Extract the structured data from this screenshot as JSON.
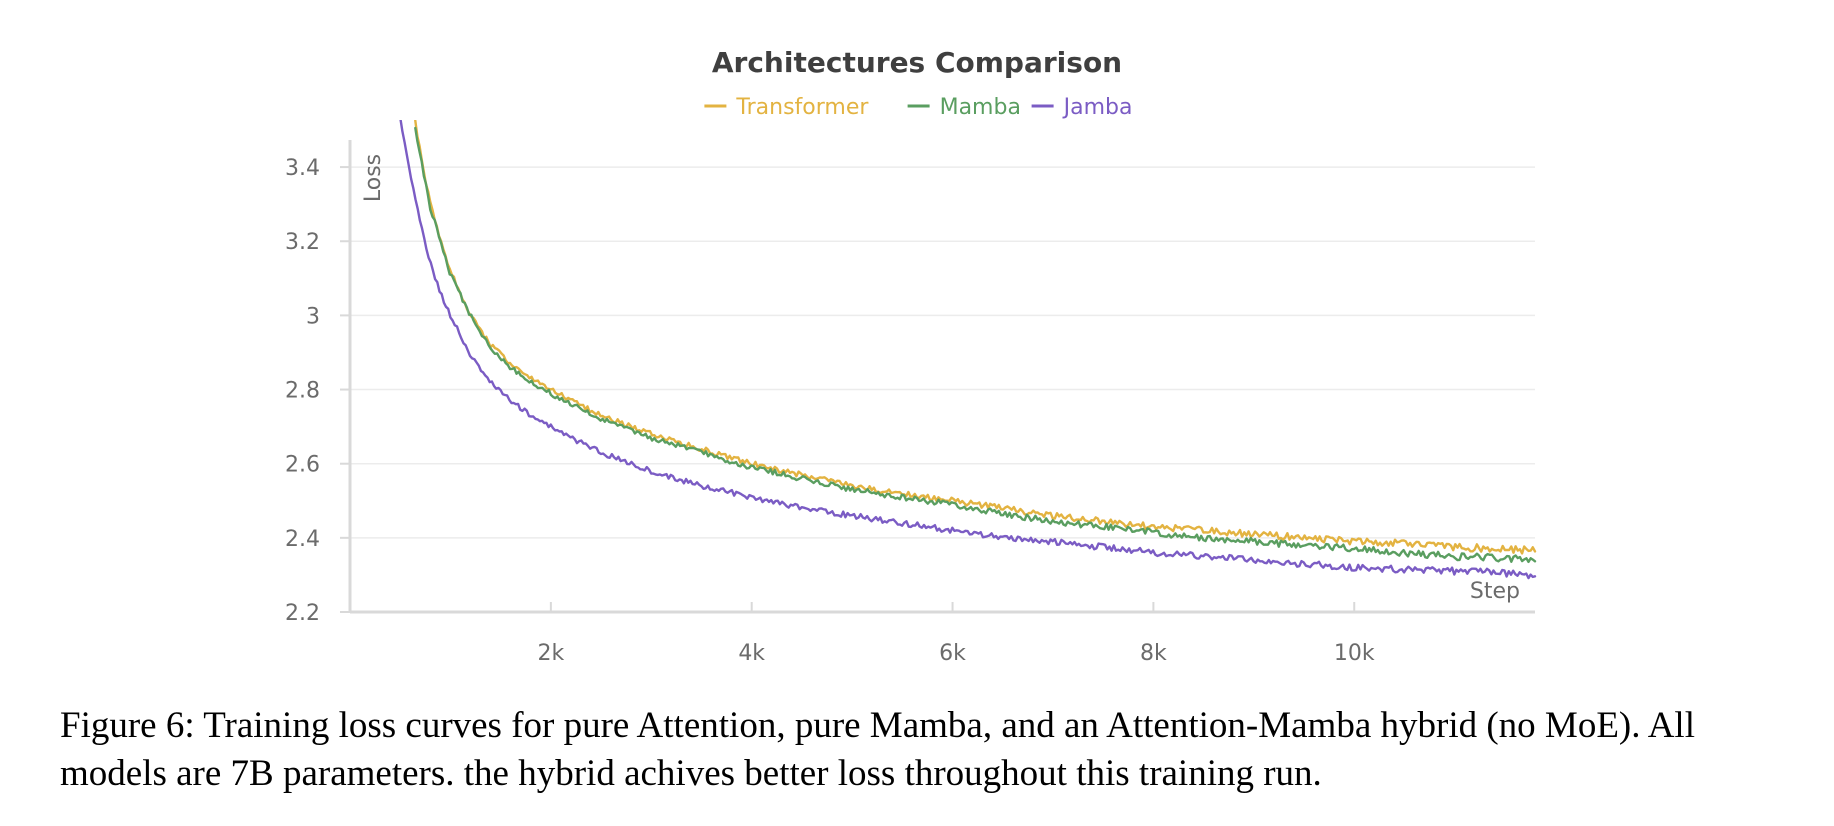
{
  "chart_data": {
    "type": "line",
    "title": "Architectures Comparison",
    "xlabel": "Step",
    "ylabel": "Loss",
    "xlim": [
      0,
      11800
    ],
    "ylim": [
      2.2,
      3.5
    ],
    "x_ticks": [
      {
        "value": 2000,
        "label": "2k"
      },
      {
        "value": 4000,
        "label": "4k"
      },
      {
        "value": 6000,
        "label": "6k"
      },
      {
        "value": 8000,
        "label": "8k"
      },
      {
        "value": 10000,
        "label": "10k"
      }
    ],
    "y_ticks": [
      {
        "value": 2.2,
        "label": "2.2"
      },
      {
        "value": 2.4,
        "label": "2.4"
      },
      {
        "value": 2.6,
        "label": "2.6"
      },
      {
        "value": 2.8,
        "label": "2.8"
      },
      {
        "value": 3.0,
        "label": "3"
      },
      {
        "value": 3.2,
        "label": "3.2"
      },
      {
        "value": 3.4,
        "label": "3.4"
      }
    ],
    "grid": true,
    "legend_position": "top-center",
    "series": [
      {
        "name": "Transformer",
        "color": "#e3b341",
        "x": [
          650,
          700,
          800,
          900,
          1000,
          1200,
          1400,
          1600,
          1800,
          2000,
          2200,
          2500,
          2800,
          3000,
          3500,
          4000,
          4500,
          5000,
          5500,
          6000,
          6500,
          7000,
          7500,
          8000,
          8500,
          9000,
          9500,
          10000,
          10500,
          11000,
          11500,
          11800
        ],
        "values": [
          3.52,
          3.44,
          3.3,
          3.2,
          3.12,
          3.0,
          2.92,
          2.87,
          2.83,
          2.8,
          2.77,
          2.73,
          2.7,
          2.68,
          2.64,
          2.6,
          2.57,
          2.54,
          2.52,
          2.5,
          2.48,
          2.46,
          2.445,
          2.43,
          2.42,
          2.41,
          2.4,
          2.39,
          2.385,
          2.375,
          2.37,
          2.365
        ]
      },
      {
        "name": "Mamba",
        "color": "#5a9e60",
        "x": [
          650,
          700,
          800,
          900,
          1000,
          1200,
          1400,
          1600,
          1800,
          2000,
          2200,
          2500,
          2800,
          3000,
          3500,
          4000,
          4500,
          5000,
          5500,
          6000,
          6500,
          7000,
          7500,
          8000,
          8500,
          9000,
          9500,
          10000,
          10500,
          11000,
          11500,
          11800
        ],
        "values": [
          3.5,
          3.43,
          3.29,
          3.2,
          3.11,
          3.0,
          2.91,
          2.86,
          2.82,
          2.79,
          2.76,
          2.72,
          2.69,
          2.67,
          2.63,
          2.59,
          2.56,
          2.53,
          2.51,
          2.49,
          2.465,
          2.445,
          2.43,
          2.415,
          2.4,
          2.39,
          2.38,
          2.37,
          2.36,
          2.35,
          2.345,
          2.34
        ]
      },
      {
        "name": "Jamba",
        "color": "#7b5cc4",
        "x": [
          500,
          550,
          600,
          700,
          800,
          900,
          1000,
          1200,
          1400,
          1600,
          1800,
          2000,
          2200,
          2500,
          2800,
          3000,
          3500,
          4000,
          4500,
          5000,
          5500,
          6000,
          6500,
          7000,
          7500,
          8000,
          8500,
          9000,
          9500,
          10000,
          10500,
          11000,
          11500,
          11800
        ],
        "values": [
          3.53,
          3.46,
          3.38,
          3.25,
          3.14,
          3.06,
          3.0,
          2.89,
          2.82,
          2.77,
          2.73,
          2.7,
          2.67,
          2.63,
          2.6,
          2.58,
          2.54,
          2.51,
          2.48,
          2.46,
          2.44,
          2.42,
          2.4,
          2.39,
          2.375,
          2.36,
          2.35,
          2.34,
          2.33,
          2.32,
          2.315,
          2.31,
          2.305,
          2.3
        ]
      }
    ]
  },
  "caption": "Figure 6: Training loss curves for pure Attention, pure Mamba, and an Attention-Mamba hybrid (no MoE). All models are 7B parameters. the hybrid achives better loss throughout this training run."
}
